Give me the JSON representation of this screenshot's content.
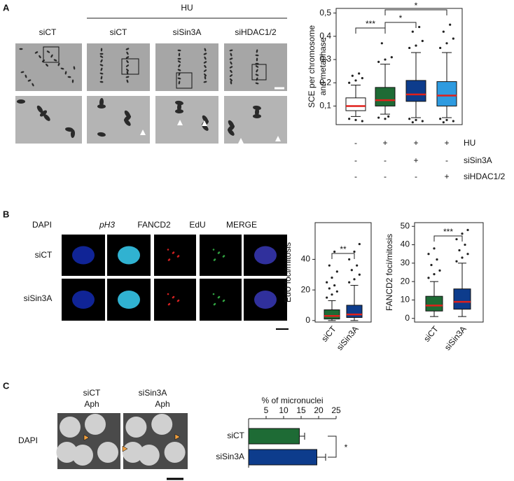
{
  "panels": {
    "A": {
      "label": "A",
      "group": "HU",
      "columns": [
        "siCT",
        "siCT",
        "siSin3A",
        "siHDAC1/2"
      ]
    },
    "B": {
      "label": "B",
      "columns": [
        "DAPI",
        "pH3",
        "FANCD2",
        "EdU",
        "MERGE"
      ],
      "rows": [
        "siCT",
        "siSin3A"
      ]
    },
    "C": {
      "label": "C",
      "columns": [
        [
          "siCT",
          "Aph"
        ],
        [
          "siSin3A",
          "Aph"
        ]
      ],
      "row": "DAPI"
    }
  },
  "chart_data": [
    {
      "type": "box",
      "ylabel": [
        "SCE per chromosome",
        "and metaphase"
      ],
      "ylim": [
        0.02,
        0.52
      ],
      "yticks": [
        {
          "value": 0.1,
          "label": "0,1"
        },
        {
          "value": 0.2,
          "label": "0,2"
        },
        {
          "value": 0.3,
          "label": "0,3"
        },
        {
          "value": 0.4,
          "label": "0,4"
        },
        {
          "value": 0.5,
          "label": "0,5"
        }
      ],
      "median_color": "#e0201b",
      "boxes": [
        {
          "color": "#ffffff",
          "low": 0.055,
          "q1": 0.08,
          "median": 0.1,
          "q3": 0.135,
          "high": 0.19,
          "outliers": [
            0.2,
            0.21,
            0.22,
            0.23,
            0.24,
            0.045,
            0.04,
            0.035
          ]
        },
        {
          "color": "#1e6b35",
          "low": 0.065,
          "q1": 0.1,
          "median": 0.125,
          "q3": 0.18,
          "high": 0.28,
          "outliers": [
            0.29,
            0.3,
            0.31,
            0.37,
            0.055,
            0.05,
            0.045
          ]
        },
        {
          "color": "#0d3c8c",
          "low": 0.05,
          "q1": 0.12,
          "median": 0.15,
          "q3": 0.21,
          "high": 0.33,
          "outliers": [
            0.35,
            0.36,
            0.38,
            0.42,
            0.44,
            0.045,
            0.04,
            0.035,
            0.03
          ]
        },
        {
          "color": "#2e9be0",
          "low": 0.05,
          "q1": 0.1,
          "median": 0.145,
          "q3": 0.205,
          "high": 0.33,
          "outliers": [
            0.35,
            0.37,
            0.39,
            0.42,
            0.45,
            0.045,
            0.04,
            0.035,
            0.03
          ]
        }
      ],
      "annotations": [
        "***",
        "*",
        "*"
      ],
      "conditions": [
        {
          "label": "HU",
          "marks": [
            "-",
            "+",
            "+",
            "+"
          ]
        },
        {
          "label": "siSin3A",
          "marks": [
            "-",
            "-",
            "+",
            "-"
          ]
        },
        {
          "label": "siHDAC1/2",
          "marks": [
            "-",
            "-",
            "-",
            "+"
          ]
        }
      ]
    },
    {
      "type": "box",
      "ylabel": [
        "EdU foci/mitosis"
      ],
      "ylim": [
        -1,
        64
      ],
      "yticks": [
        0,
        20,
        40
      ],
      "median_color": "#e0201b",
      "categories": [
        "siCT",
        "siSin3A"
      ],
      "boxes": [
        {
          "color": "#1e6b35",
          "low": 0,
          "q1": 1,
          "median": 3,
          "q3": 7,
          "high": 13,
          "outliers": [
            15,
            17,
            19,
            21,
            23,
            25,
            28,
            32,
            36,
            45
          ]
        },
        {
          "color": "#0d3c8c",
          "low": 0,
          "q1": 2,
          "median": 4,
          "q3": 10,
          "high": 23,
          "outliers": [
            25,
            27,
            30,
            33,
            36,
            40,
            45,
            50
          ]
        }
      ],
      "annotations": [
        "**"
      ]
    },
    {
      "type": "box",
      "ylabel": [
        "FANCD2 foci/mitosis"
      ],
      "ylim": [
        -2,
        52
      ],
      "yticks": [
        0,
        10,
        20,
        30,
        40,
        50
      ],
      "median_color": "#e0201b",
      "categories": [
        "siCT",
        "siSin3A"
      ],
      "boxes": [
        {
          "color": "#1e6b35",
          "low": 1,
          "q1": 4,
          "median": 7,
          "q3": 12,
          "high": 20,
          "outliers": [
            22,
            24,
            26,
            29,
            32,
            35,
            38
          ]
        },
        {
          "color": "#0d3c8c",
          "low": 1,
          "q1": 5,
          "median": 9,
          "q3": 16,
          "high": 30,
          "outliers": [
            31,
            33,
            35,
            37,
            40,
            43,
            46,
            48
          ]
        }
      ],
      "annotations": [
        "***"
      ]
    },
    {
      "type": "bar",
      "title": "% of micronuclei",
      "categories": [
        "siCT",
        "siSin3A"
      ],
      "values": [
        14.5,
        19.5
      ],
      "errors": [
        1.5,
        2.5
      ],
      "colors": [
        "#1e6b35",
        "#0d3c8c"
      ],
      "xlim": [
        0,
        25
      ],
      "xticks": [
        5,
        10,
        15,
        20,
        25
      ],
      "annotations": [
        "*"
      ]
    }
  ]
}
